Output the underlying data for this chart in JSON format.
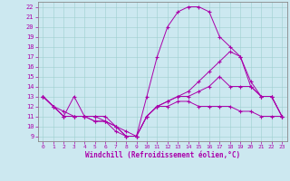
{
  "xlabel": "Windchill (Refroidissement éolien,°C)",
  "background_color": "#cce8f0",
  "line_color": "#aa00aa",
  "xlim": [
    -0.5,
    23.5
  ],
  "ylim": [
    8.5,
    22.5
  ],
  "yticks": [
    9,
    10,
    11,
    12,
    13,
    14,
    15,
    16,
    17,
    18,
    19,
    20,
    21,
    22
  ],
  "xticks": [
    0,
    1,
    2,
    3,
    4,
    5,
    6,
    7,
    8,
    9,
    10,
    11,
    12,
    13,
    14,
    15,
    16,
    17,
    18,
    19,
    20,
    21,
    22,
    23
  ],
  "lines": [
    {
      "x": [
        0,
        1,
        2,
        3,
        4,
        5,
        6,
        7,
        8,
        9,
        10,
        11,
        12,
        13,
        14,
        15,
        16,
        17,
        18,
        19,
        20,
        21,
        22,
        23
      ],
      "y": [
        13,
        12,
        11,
        13,
        11,
        10.5,
        10.5,
        9.5,
        9,
        9,
        13,
        17,
        20,
        21.5,
        22,
        22,
        21.5,
        19,
        18,
        17,
        14.5,
        13,
        13,
        11
      ]
    },
    {
      "x": [
        0,
        1,
        2,
        3,
        4,
        5,
        6,
        7,
        8,
        9,
        10,
        11,
        12,
        13,
        14,
        15,
        16,
        17,
        18,
        19,
        20,
        21,
        22,
        23
      ],
      "y": [
        13,
        12,
        11,
        11,
        11,
        10.5,
        10.5,
        10,
        9,
        9,
        11,
        12,
        12.5,
        13,
        13.5,
        14.5,
        15.5,
        16.5,
        17.5,
        17,
        14,
        13,
        13,
        11
      ]
    },
    {
      "x": [
        0,
        1,
        2,
        3,
        4,
        5,
        6,
        7,
        8,
        9,
        10,
        11,
        12,
        13,
        14,
        15,
        16,
        17,
        18,
        19,
        20,
        21,
        22,
        23
      ],
      "y": [
        13,
        12,
        11.5,
        11,
        11,
        11,
        11,
        10,
        9.5,
        9,
        11,
        12,
        12,
        12.5,
        12.5,
        12,
        12,
        12,
        12,
        11.5,
        11.5,
        11,
        11,
        11
      ]
    },
    {
      "x": [
        0,
        1,
        2,
        3,
        4,
        5,
        6,
        7,
        8,
        9,
        10,
        11,
        12,
        13,
        14,
        15,
        16,
        17,
        18,
        19,
        20,
        21,
        22,
        23
      ],
      "y": [
        13,
        12,
        11,
        11,
        11,
        11,
        10.5,
        10,
        9,
        9,
        11,
        12,
        12.5,
        13,
        13,
        13.5,
        14,
        15,
        14,
        14,
        14,
        13,
        13,
        11
      ]
    }
  ]
}
